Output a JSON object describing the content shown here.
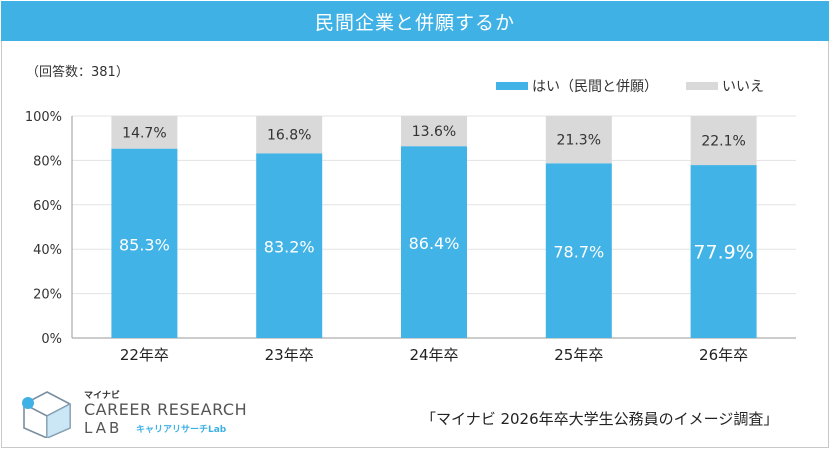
{
  "header": {
    "title": "民間企業と併願するか"
  },
  "respondents": "（回答数：381）",
  "legend": {
    "yes": "はい（民間と併願）",
    "no": "いいえ"
  },
  "colors": {
    "yes": "#41b3e6",
    "no": "#d9d9d9",
    "title_bg": "#3fb1e5"
  },
  "footer": {
    "logo_kana": "マイナビ",
    "logo_main": "CAREER RESEARCH",
    "logo_lab": "LAB",
    "logo_jp": "キャリアリサーチLab",
    "source": "「マイナビ 2026年卒大学生公務員のイメージ調査」"
  },
  "chart_data": {
    "type": "bar",
    "stacked": true,
    "categories": [
      "22年卒",
      "23年卒",
      "24年卒",
      "25年卒",
      "26年卒"
    ],
    "series": [
      {
        "name": "はい（民間と併願）",
        "values": [
          85.3,
          83.2,
          86.4,
          78.7,
          77.9
        ],
        "labels": [
          "85.3%",
          "83.2%",
          "86.4%",
          "78.7%",
          "77.9%"
        ]
      },
      {
        "name": "いいえ",
        "values": [
          14.7,
          16.8,
          13.6,
          21.3,
          22.1
        ],
        "labels": [
          "14.7%",
          "16.8%",
          "13.6%",
          "21.3%",
          "22.1%"
        ]
      }
    ],
    "y_ticks": [
      "0%",
      "20%",
      "40%",
      "60%",
      "80%",
      "100%"
    ],
    "ylim": [
      0,
      100
    ],
    "grid": true,
    "legend_position": "top-right"
  }
}
